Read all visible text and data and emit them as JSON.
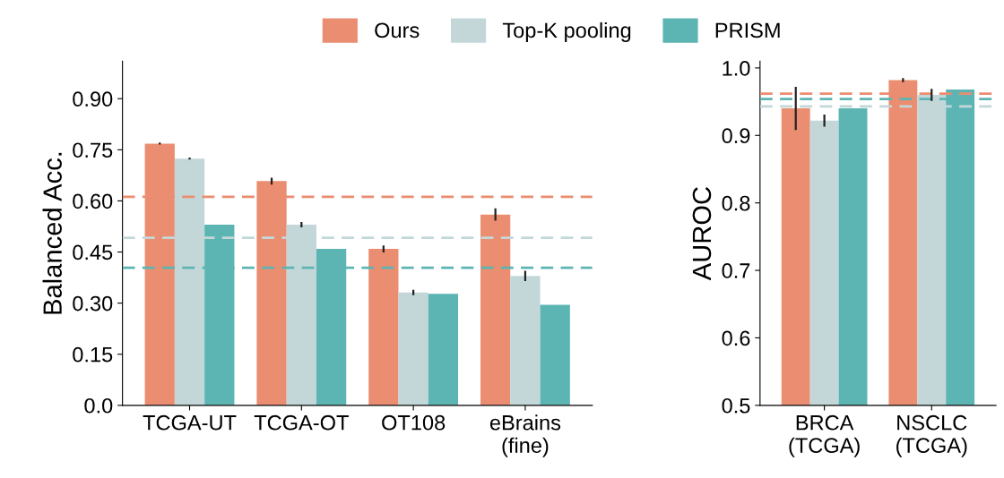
{
  "chart_data": [
    {
      "type": "bar",
      "ylabel": "Balanced Acc.",
      "categories": [
        "TCGA-UT",
        "TCGA-OT",
        "OT108",
        "eBrains\n(fine)"
      ],
      "ylim": [
        0,
        1.01
      ],
      "yticks": [
        {
          "value": 0,
          "label": "0.0"
        },
        {
          "value": 0.15,
          "label": "0.15"
        },
        {
          "value": 0.3,
          "label": "0.30"
        },
        {
          "value": 0.45,
          "label": "0.45"
        },
        {
          "value": 0.6,
          "label": "0.60"
        },
        {
          "value": 0.75,
          "label": "0.75"
        },
        {
          "value": 0.9,
          "label": "0.90"
        }
      ],
      "grid": false,
      "legend": "top",
      "series": [
        {
          "name": "Ours",
          "color": "#eb8d70",
          "values": [
            0.768,
            0.658,
            0.459,
            0.56
          ],
          "errors": [
            0.003,
            0.01,
            0.01,
            0.018
          ]
        },
        {
          "name": "Top-K pooling",
          "color": "#c3d7d9",
          "values": [
            0.724,
            0.53,
            0.331,
            0.38
          ],
          "errors": [
            0.003,
            0.008,
            0.008,
            0.015
          ]
        },
        {
          "name": "PRISM",
          "color": "#5cb5b3",
          "values": [
            0.53,
            0.459,
            0.327,
            0.295
          ],
          "errors": [
            null,
            null,
            null,
            null
          ]
        }
      ],
      "ref_lines": [
        {
          "axis": "y",
          "value": 0.612,
          "color": "#eb8d70",
          "line_style": "dashed"
        },
        {
          "axis": "y",
          "value": 0.492,
          "color": "#c3d7d9",
          "line_style": "dashed"
        },
        {
          "axis": "y",
          "value": 0.404,
          "color": "#5cb5b3",
          "line_style": "dashed"
        }
      ]
    },
    {
      "type": "bar",
      "ylabel": "AUROC",
      "categories": [
        "BRCA\n(TCGA)",
        "NSCLC\n(TCGA)"
      ],
      "ylim": [
        0.5,
        1.01
      ],
      "yticks": [
        {
          "value": 0.5,
          "label": "0.5"
        },
        {
          "value": 0.6,
          "label": "0.6"
        },
        {
          "value": 0.7,
          "label": "0.7"
        },
        {
          "value": 0.8,
          "label": "0.8"
        },
        {
          "value": 0.9,
          "label": "0.9"
        },
        {
          "value": 1.0,
          "label": "1.0"
        }
      ],
      "grid": false,
      "series": [
        {
          "color": "#eb8d70",
          "values": [
            0.94,
            0.982
          ],
          "errors": [
            0.032,
            0.003
          ]
        },
        {
          "color": "#c3d7d9",
          "values": [
            0.922,
            0.96
          ],
          "errors": [
            0.009,
            0.009
          ]
        },
        {
          "color": "#5cb5b3",
          "values": [
            0.94,
            0.968
          ],
          "errors": [
            null,
            null
          ]
        }
      ],
      "ref_lines": [
        {
          "axis": "y",
          "value": 0.962,
          "color": "#eb8d70",
          "line_style": "dashed"
        },
        {
          "axis": "y",
          "value": 0.943,
          "color": "#c3d7d9",
          "line_style": "dashed"
        },
        {
          "axis": "y",
          "value": 0.954,
          "color": "#5cb5b3",
          "line_style": "dashed"
        }
      ]
    }
  ]
}
